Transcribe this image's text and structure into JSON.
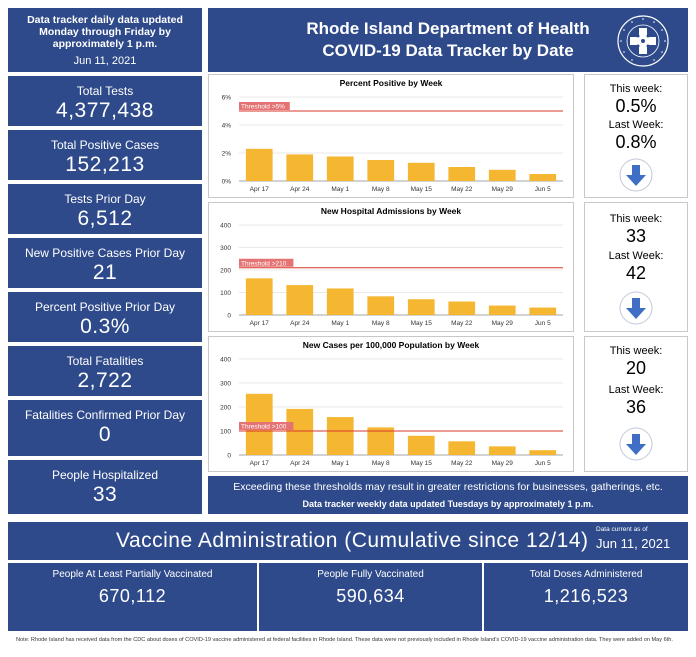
{
  "header": {
    "update_line1": "Data tracker daily data updated",
    "update_line2": "Monday through Friday by",
    "update_line3": "approximately 1 p.m.",
    "update_date": "Jun 11, 2021",
    "title_line1": "Rhode Island Department of Health",
    "title_line2": "COVID-19 Data Tracker by Date",
    "seal_icon": "ri-health-seal-icon"
  },
  "stats": [
    {
      "label": "Total Tests",
      "value": "4,377,438"
    },
    {
      "label": "Total Positive Cases",
      "value": "152,213"
    },
    {
      "label": "Tests Prior Day",
      "value": "6,512"
    },
    {
      "label": "New Positive Cases Prior Day",
      "value": "21"
    },
    {
      "label": "Percent Positive Prior Day",
      "value": "0.3%"
    },
    {
      "label": "Total Fatalities",
      "value": "2,722"
    },
    {
      "label": "Fatalities Confirmed Prior Day",
      "value": "0"
    },
    {
      "label": "People Hospitalized",
      "value": "33"
    }
  ],
  "weekly": [
    {
      "this_label": "This week:",
      "this_value": "0.5%",
      "last_label": "Last Week:",
      "last_value": "0.8%",
      "trend_icon": "arrow-down-icon"
    },
    {
      "this_label": "This week:",
      "this_value": "33",
      "last_label": "Last Week:",
      "last_value": "42",
      "trend_icon": "arrow-down-icon"
    },
    {
      "this_label": "This week:",
      "this_value": "20",
      "last_label": "Last Week:",
      "last_value": "36",
      "trend_icon": "arrow-down-icon"
    }
  ],
  "threshold_note": "Exceeding these thresholds may result in greater restrictions for businesses, gatherings, etc.",
  "weekly_update_note": "Data tracker weekly data updated Tuesdays by approximately 1 p.m.",
  "vaccine": {
    "title": "Vaccine Administration (Cumulative since 12/14)",
    "current_label": "Data current as of",
    "current_date": "Jun 11, 2021",
    "items": [
      {
        "label": "People At Least Partially Vaccinated",
        "value": "670,112"
      },
      {
        "label": "People Fully Vaccinated",
        "value": "590,634"
      },
      {
        "label": "Total Doses Administered",
        "value": "1,216,523"
      }
    ]
  },
  "footnote": "Note: Rhode Island has received data from the CDC about doses of COVID-19 vaccine administered at federal facilities in Rhode Island. These data were not previously included in Rhode Island's COVID-19 vaccine administration data. They were added on May 6th.",
  "colors": {
    "navy": "#2e4a8a",
    "bar": "#f5b731",
    "threshold": "#d9342b",
    "arrow": "#3f6fc4"
  },
  "chart_data": [
    {
      "type": "bar",
      "title": "Percent Positive by Week",
      "categories": [
        "Apr 17",
        "Apr 24",
        "May 1",
        "May 8",
        "May 15",
        "May 22",
        "May 29",
        "Jun 5"
      ],
      "values": [
        2.3,
        1.9,
        1.75,
        1.5,
        1.3,
        1.0,
        0.8,
        0.5
      ],
      "yticks": [
        "0%",
        "2%",
        "4%",
        "6%"
      ],
      "ylim": [
        0,
        6
      ],
      "threshold": {
        "label": "Threshold >5%",
        "value": 5
      }
    },
    {
      "type": "bar",
      "title": "New Hospital Admissions by Week",
      "categories": [
        "Apr 17",
        "Apr 24",
        "May 1",
        "May 8",
        "May 15",
        "May 22",
        "May 29",
        "Jun 5"
      ],
      "values": [
        163,
        133,
        118,
        83,
        70,
        60,
        42,
        33
      ],
      "yticks": [
        "0",
        "100",
        "200",
        "300",
        "400"
      ],
      "ylim": [
        0,
        400
      ],
      "threshold": {
        "label": "Threshold >210",
        "value": 210
      }
    },
    {
      "type": "bar",
      "title": "New Cases per 100,000 Population by Week",
      "categories": [
        "Apr 17",
        "Apr 24",
        "May 1",
        "May 8",
        "May 15",
        "May 22",
        "May 29",
        "Jun 5"
      ],
      "values": [
        255,
        192,
        158,
        115,
        80,
        57,
        36,
        20
      ],
      "yticks": [
        "0",
        "100",
        "200",
        "300",
        "400"
      ],
      "ylim": [
        0,
        400
      ],
      "threshold": {
        "label": "Threshold >100",
        "value": 100
      }
    }
  ]
}
